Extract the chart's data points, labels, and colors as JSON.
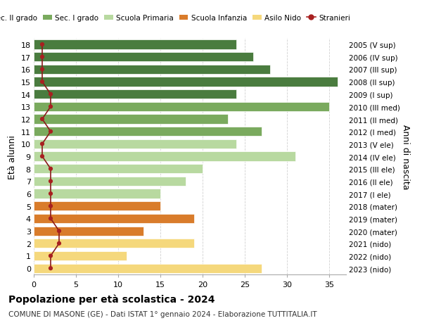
{
  "ages": [
    18,
    17,
    16,
    15,
    14,
    13,
    12,
    11,
    10,
    9,
    8,
    7,
    6,
    5,
    4,
    3,
    2,
    1,
    0
  ],
  "years": [
    "2005 (V sup)",
    "2006 (IV sup)",
    "2007 (III sup)",
    "2008 (II sup)",
    "2009 (I sup)",
    "2010 (III med)",
    "2011 (II med)",
    "2012 (I med)",
    "2013 (V ele)",
    "2014 (IV ele)",
    "2015 (III ele)",
    "2016 (II ele)",
    "2017 (I ele)",
    "2018 (mater)",
    "2019 (mater)",
    "2020 (mater)",
    "2021 (nido)",
    "2022 (nido)",
    "2023 (nido)"
  ],
  "bar_values": [
    24,
    26,
    28,
    36,
    24,
    35,
    23,
    27,
    24,
    31,
    20,
    18,
    15,
    15,
    19,
    13,
    19,
    11,
    27
  ],
  "bar_colors": [
    "#4a7c3f",
    "#4a7c3f",
    "#4a7c3f",
    "#4a7c3f",
    "#4a7c3f",
    "#7aaa5e",
    "#7aaa5e",
    "#7aaa5e",
    "#b8d9a0",
    "#b8d9a0",
    "#b8d9a0",
    "#b8d9a0",
    "#b8d9a0",
    "#d97c2b",
    "#d97c2b",
    "#d97c2b",
    "#f5d87c",
    "#f5d87c",
    "#f5d87c"
  ],
  "stranieri_values": [
    1,
    1,
    1,
    1,
    2,
    2,
    1,
    2,
    1,
    1,
    2,
    2,
    2,
    2,
    2,
    3,
    3,
    2,
    2
  ],
  "legend_labels": [
    "Sec. II grado",
    "Sec. I grado",
    "Scuola Primaria",
    "Scuola Infanzia",
    "Asilo Nido",
    "Stranieri"
  ],
  "legend_colors": [
    "#4a7c3f",
    "#7aaa5e",
    "#b8d9a0",
    "#d97c2b",
    "#f5d87c",
    "#a82020"
  ],
  "ylabel": "Età alunni",
  "right_label": "Anni di nascita",
  "title": "Popolazione per età scolastica - 2024",
  "subtitle": "COMUNE DI MASONE (GE) - Dati ISTAT 1° gennaio 2024 - Elaborazione TUTTITALIA.IT",
  "xlim": [
    0,
    37
  ],
  "background_color": "#ffffff",
  "grid_color": "#cccccc"
}
